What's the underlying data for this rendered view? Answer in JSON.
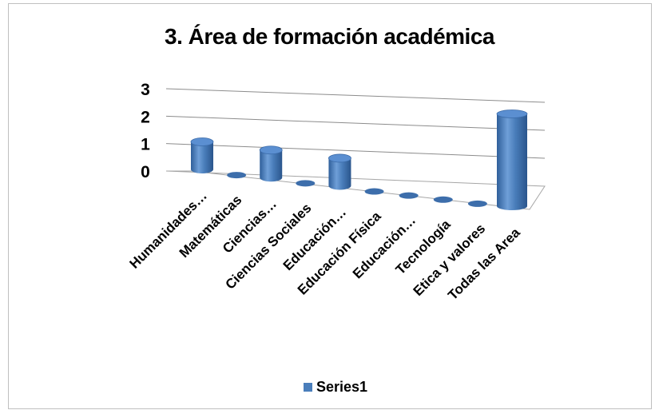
{
  "chart_data": {
    "type": "bar",
    "style": "3d-cylinder",
    "title": "3. Área de formación académica",
    "categories": [
      "Humanidades…",
      "Matemáticas",
      "Ciencias…",
      "Ciencias Sociales",
      "Educación…",
      "Educación Física",
      "Educación…",
      "Tecnología",
      "Etica y valores",
      "Todas las Area"
    ],
    "series": [
      {
        "name": "Series1",
        "values": [
          1,
          0,
          1,
          0,
          1,
          0,
          0,
          0,
          0,
          3
        ]
      }
    ],
    "yticks": [
      "0",
      "1",
      "2",
      "3"
    ],
    "ylim": [
      0,
      3
    ],
    "grid": true,
    "legend": "bottom",
    "colors": {
      "bar": "#4a7ebb",
      "bar_dark": "#2f5f9a",
      "bar_light": "#8fb4e3",
      "grid": "#8c8c8c"
    }
  }
}
